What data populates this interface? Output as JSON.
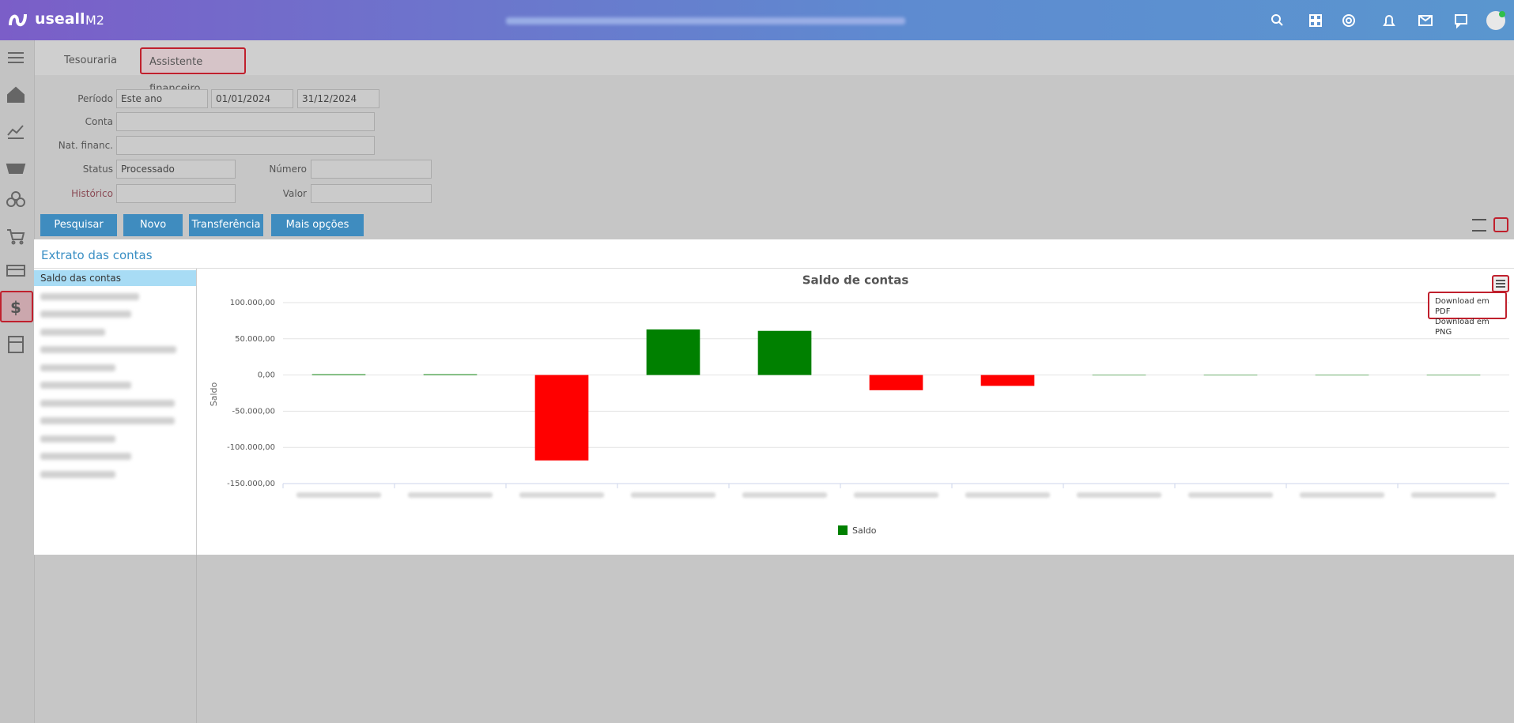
{
  "header": {
    "brand": "useall",
    "module": "M2"
  },
  "tabs": [
    "Tesouraria",
    "Assistente financeiro"
  ],
  "filters": {
    "period": {
      "label": "Período",
      "value": "Este ano",
      "start": "01/01/2024",
      "end": "31/12/2024"
    },
    "account": {
      "label": "Conta"
    },
    "nature": {
      "label": "Nat. financ."
    },
    "status": {
      "label": "Status",
      "value": "Processado"
    },
    "number": {
      "label": "Número"
    },
    "history": {
      "label": "Histórico"
    },
    "amount": {
      "label": "Valor"
    }
  },
  "buttons": [
    "Pesquisar",
    "Novo",
    "Transferência",
    "Mais opções"
  ],
  "panel": {
    "title": "Extrato das contas",
    "list": [
      "Saldo das contas"
    ]
  },
  "export_menu": [
    "Download em PDF",
    "Download em PNG"
  ],
  "chart_data": {
    "type": "bar",
    "title": "Saldo de contas",
    "y_label": "Saldo",
    "categories": [
      null,
      null,
      null,
      null,
      null,
      null,
      null,
      null,
      null,
      null,
      null
    ],
    "series": [
      {
        "name": "Saldo",
        "color": "#008000",
        "values": [
          1000,
          1000,
          -118000,
          63000,
          61000,
          -21000,
          -15000,
          0,
          0,
          0,
          0
        ]
      }
    ],
    "negative_color": "#ff0000",
    "ylim": [
      -150000,
      100000
    ],
    "yticks": [
      {
        "value": -150000,
        "label": "-150.000,00"
      },
      {
        "value": -100000,
        "label": "-100.000,00"
      },
      {
        "value": -50000,
        "label": "-50.000,00"
      },
      {
        "value": 0,
        "label": "0,00"
      },
      {
        "value": 50000,
        "label": "50.000,00"
      },
      {
        "value": 100000,
        "label": "100.000,00"
      }
    ],
    "grid": true
  }
}
